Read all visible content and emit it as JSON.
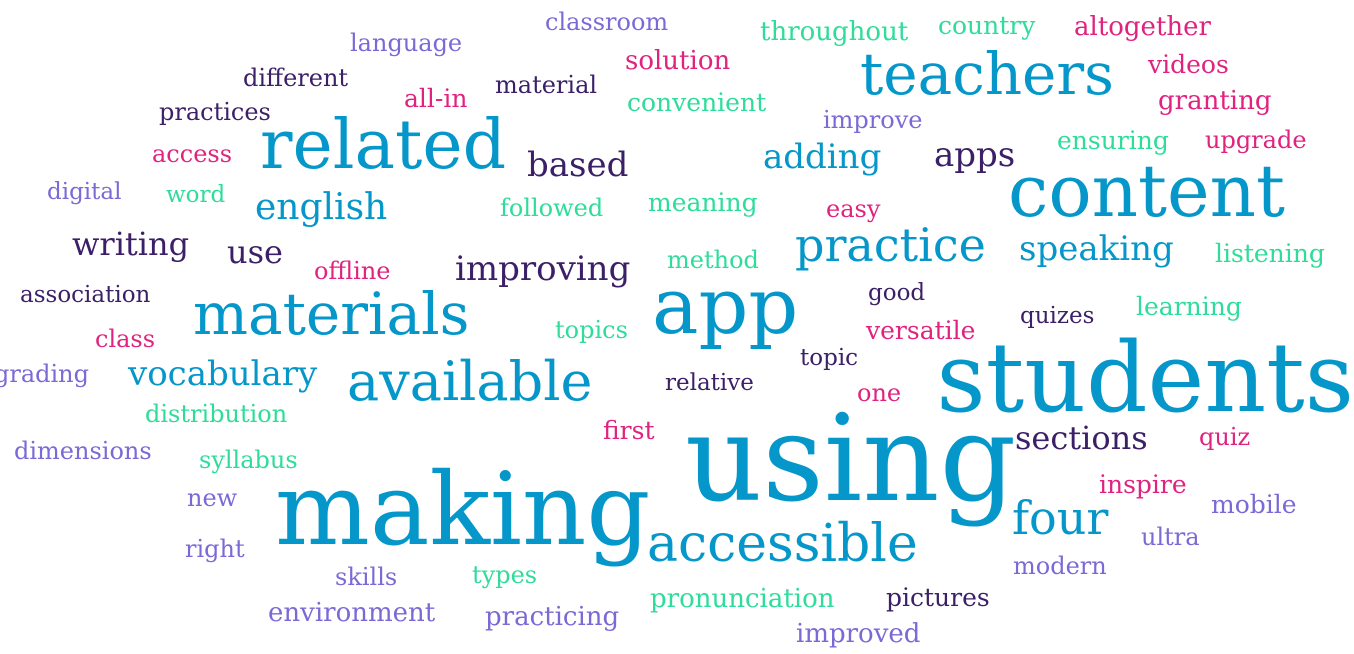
{
  "palette": {
    "blue": "#0597c9",
    "teal": "#2fdc9b",
    "pink": "#e0237f",
    "navy": "#3b1f67",
    "violet": "#7b6ad6"
  },
  "words": [
    {
      "text": "students",
      "color": "blue"
    },
    {
      "text": "using",
      "color": "blue"
    },
    {
      "text": "app",
      "color": "blue"
    },
    {
      "text": "making",
      "color": "blue"
    },
    {
      "text": "content",
      "color": "blue"
    },
    {
      "text": "related",
      "color": "blue"
    },
    {
      "text": "materials",
      "color": "blue"
    },
    {
      "text": "teachers",
      "color": "blue"
    },
    {
      "text": "available",
      "color": "blue"
    },
    {
      "text": "accessible",
      "color": "blue"
    },
    {
      "text": "practice",
      "color": "blue"
    },
    {
      "text": "four",
      "color": "blue"
    },
    {
      "text": "vocabulary",
      "color": "blue"
    },
    {
      "text": "speaking",
      "color": "blue"
    },
    {
      "text": "adding",
      "color": "blue"
    },
    {
      "text": "english",
      "color": "blue"
    },
    {
      "text": "improving",
      "color": "navy"
    },
    {
      "text": "sections",
      "color": "navy"
    },
    {
      "text": "apps",
      "color": "navy"
    },
    {
      "text": "based",
      "color": "navy"
    },
    {
      "text": "writing",
      "color": "navy"
    },
    {
      "text": "use",
      "color": "navy"
    },
    {
      "text": "practices",
      "color": "navy"
    },
    {
      "text": "different",
      "color": "navy"
    },
    {
      "text": "material",
      "color": "navy"
    },
    {
      "text": "association",
      "color": "navy"
    },
    {
      "text": "relative",
      "color": "navy"
    },
    {
      "text": "topic",
      "color": "navy"
    },
    {
      "text": "quizes",
      "color": "navy"
    },
    {
      "text": "pictures",
      "color": "navy"
    },
    {
      "text": "good",
      "color": "navy"
    },
    {
      "text": "classroom",
      "color": "violet"
    },
    {
      "text": "language",
      "color": "violet"
    },
    {
      "text": "improve",
      "color": "violet"
    },
    {
      "text": "digital",
      "color": "violet"
    },
    {
      "text": "grading",
      "color": "violet"
    },
    {
      "text": "dimensions",
      "color": "violet"
    },
    {
      "text": "new",
      "color": "violet"
    },
    {
      "text": "right",
      "color": "violet"
    },
    {
      "text": "skills",
      "color": "violet"
    },
    {
      "text": "environment",
      "color": "violet"
    },
    {
      "text": "practicing",
      "color": "violet"
    },
    {
      "text": "improved",
      "color": "violet"
    },
    {
      "text": "modern",
      "color": "violet"
    },
    {
      "text": "ultra",
      "color": "violet"
    },
    {
      "text": "mobile",
      "color": "violet"
    },
    {
      "text": "throughout",
      "color": "teal"
    },
    {
      "text": "country",
      "color": "teal"
    },
    {
      "text": "convenient",
      "color": "teal"
    },
    {
      "text": "ensuring",
      "color": "teal"
    },
    {
      "text": "word",
      "color": "teal"
    },
    {
      "text": "followed",
      "color": "teal"
    },
    {
      "text": "meaning",
      "color": "teal"
    },
    {
      "text": "method",
      "color": "teal"
    },
    {
      "text": "listening",
      "color": "teal"
    },
    {
      "text": "learning",
      "color": "teal"
    },
    {
      "text": "topics",
      "color": "teal"
    },
    {
      "text": "distribution",
      "color": "teal"
    },
    {
      "text": "syllabus",
      "color": "teal"
    },
    {
      "text": "types",
      "color": "teal"
    },
    {
      "text": "pronunciation",
      "color": "teal"
    },
    {
      "text": "altogether",
      "color": "pink"
    },
    {
      "text": "solution",
      "color": "pink"
    },
    {
      "text": "videos",
      "color": "pink"
    },
    {
      "text": "all-in",
      "color": "pink"
    },
    {
      "text": "granting",
      "color": "pink"
    },
    {
      "text": "access",
      "color": "pink"
    },
    {
      "text": "upgrade",
      "color": "pink"
    },
    {
      "text": "easy",
      "color": "pink"
    },
    {
      "text": "offline",
      "color": "pink"
    },
    {
      "text": "class",
      "color": "pink"
    },
    {
      "text": "versatile",
      "color": "pink"
    },
    {
      "text": "one",
      "color": "pink"
    },
    {
      "text": "first",
      "color": "pink"
    },
    {
      "text": "quiz",
      "color": "pink"
    },
    {
      "text": "inspire",
      "color": "pink"
    }
  ]
}
